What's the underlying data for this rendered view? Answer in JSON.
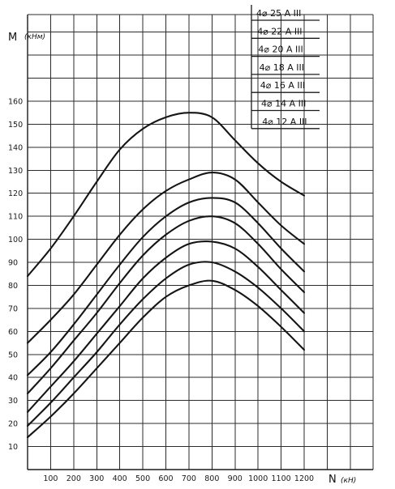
{
  "chart_data": {
    "type": "line",
    "ylabel": "M",
    "ylabel_unit": "(кНм)",
    "xlabel": "N",
    "xlabel_unit": "(кН)",
    "x_ticks": [
      "100",
      "200",
      "300",
      "400",
      "500",
      "600",
      "700",
      "800",
      "900",
      "1000",
      "1100",
      "1200"
    ],
    "y_ticks": [
      "10",
      "20",
      "30",
      "40",
      "50",
      "60",
      "70",
      "80",
      "90",
      "100",
      "110",
      "120",
      "130",
      "140",
      "150",
      "160"
    ],
    "xlim": [
      0,
      1400
    ],
    "ylim": [
      0,
      190
    ],
    "grid": true,
    "legend_position": "top-right",
    "x": [
      0,
      100,
      200,
      300,
      400,
      500,
      600,
      700,
      800,
      900,
      1000,
      1100,
      1200
    ],
    "series": [
      {
        "name": "4⌀ 25 А III",
        "values": [
          84,
          96,
          110,
          125,
          139,
          148,
          153,
          155,
          153,
          143,
          133,
          125,
          119
        ]
      },
      {
        "name": "4⌀ 22 А III",
        "values": [
          55,
          65,
          76,
          89,
          102,
          113,
          121,
          126,
          129,
          126,
          116,
          106,
          98
        ]
      },
      {
        "name": "4⌀ 20 А III",
        "values": [
          41,
          51,
          63,
          76,
          89,
          101,
          110,
          116,
          118,
          116,
          107,
          96,
          86
        ]
      },
      {
        "name": "4⌀ 18 А III",
        "values": [
          33,
          44,
          56,
          68,
          81,
          93,
          102,
          108,
          110,
          107,
          98,
          87,
          77
        ]
      },
      {
        "name": "4⌀ 16 А III",
        "values": [
          25,
          36,
          47,
          59,
          71,
          83,
          92,
          98,
          99,
          96,
          88,
          78,
          68
        ]
      },
      {
        "name": "4⌀ 14 А III",
        "values": [
          19,
          29,
          40,
          51,
          63,
          74,
          83,
          89,
          90,
          86,
          79,
          70,
          60
        ]
      },
      {
        "name": "4⌀ 12 А III",
        "values": [
          14,
          23,
          33,
          44,
          55,
          66,
          75,
          80,
          82,
          78,
          71,
          62,
          52
        ]
      }
    ]
  }
}
